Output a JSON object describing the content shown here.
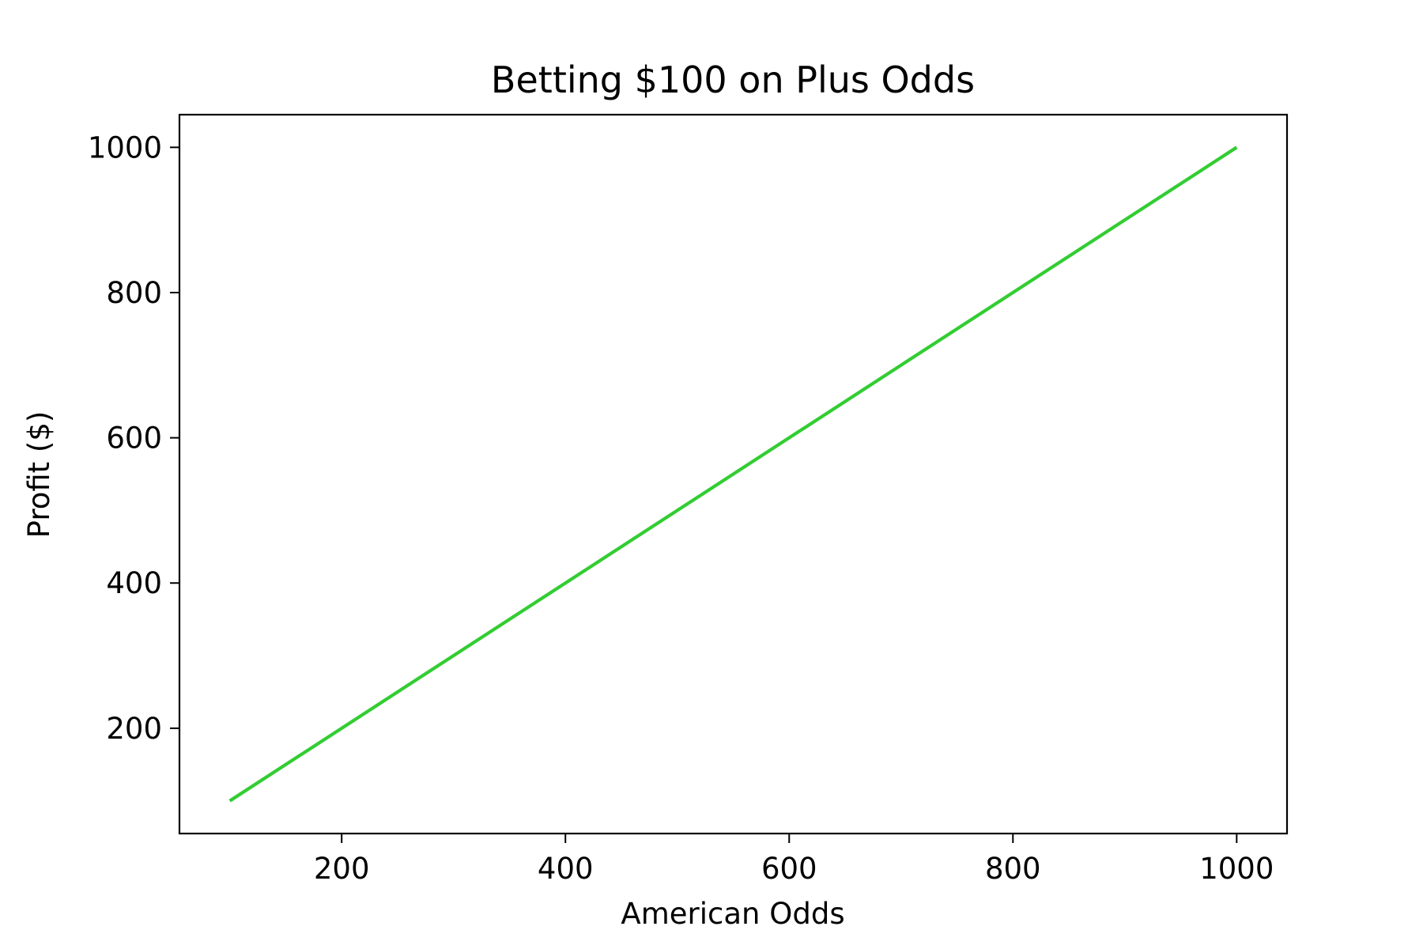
{
  "chart_data": {
    "type": "line",
    "title": "Betting $100 on Plus Odds",
    "xlabel": "American Odds",
    "ylabel": "Profit ($)",
    "xlim": [
      55,
      1045
    ],
    "ylim": [
      55,
      1045
    ],
    "xticks": [
      200,
      400,
      600,
      800,
      1000
    ],
    "yticks": [
      200,
      400,
      600,
      800,
      1000
    ],
    "grid": false,
    "series": [
      {
        "color": "#32cd32",
        "x": [
          100,
          1000
        ],
        "y": [
          100,
          1000
        ]
      }
    ]
  }
}
